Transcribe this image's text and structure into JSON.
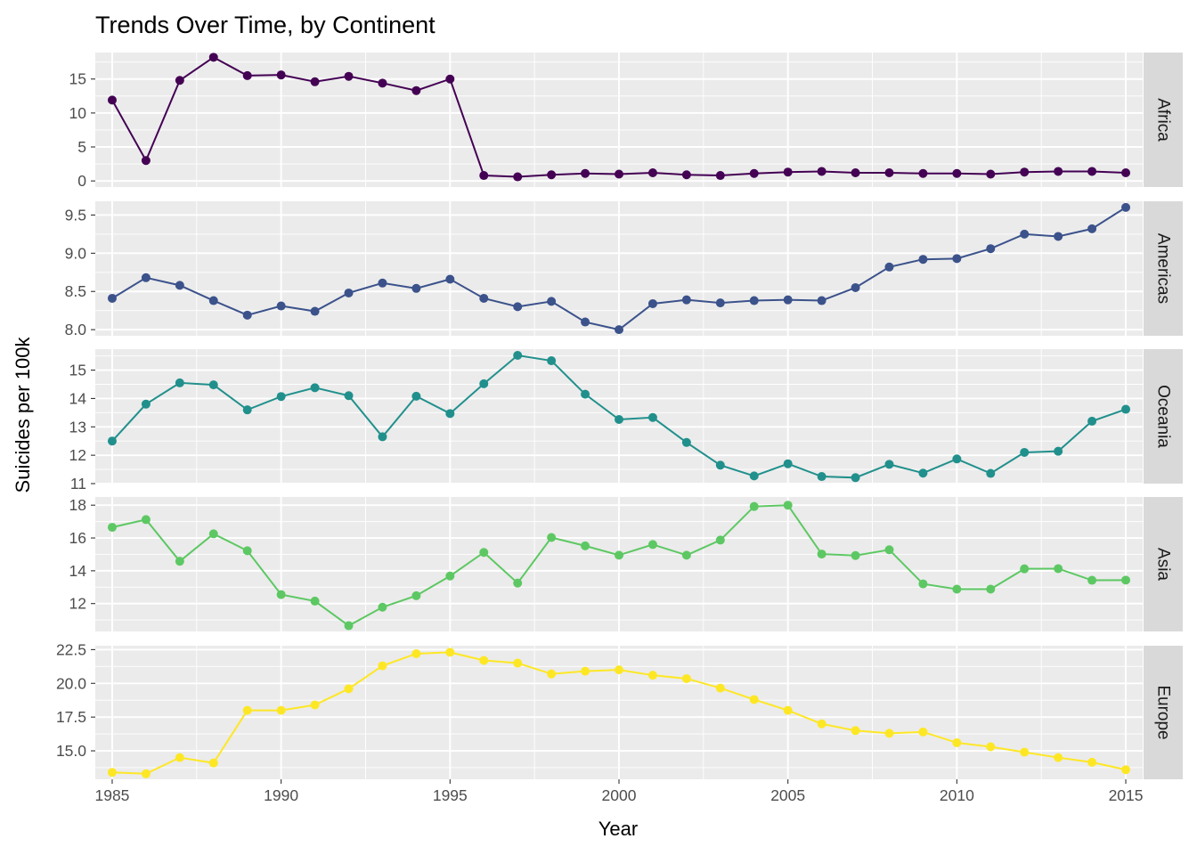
{
  "chart_data": {
    "type": "line",
    "title": "Trends Over Time, by Continent",
    "xlabel": "Year",
    "ylabel": "Suicides per 100k",
    "x": [
      1985,
      1986,
      1987,
      1988,
      1989,
      1990,
      1991,
      1992,
      1993,
      1994,
      1995,
      1996,
      1997,
      1998,
      1999,
      2000,
      2001,
      2002,
      2003,
      2004,
      2005,
      2006,
      2007,
      2008,
      2009,
      2010,
      2011,
      2012,
      2013,
      2014,
      2015
    ],
    "x_ticks": [
      1985,
      1990,
      1995,
      2000,
      2005,
      2010,
      2015
    ],
    "xlim": [
      1984.5,
      2015.5
    ],
    "grid": true,
    "legend": "none",
    "facets": [
      {
        "name": "Africa",
        "color": "#440154",
        "ylim": [
          -0.9,
          18.9
        ],
        "y_ticks": [
          0,
          5,
          10,
          15
        ],
        "y_tick_labels": [
          "0",
          "5",
          "10",
          "15"
        ],
        "values": [
          11.9,
          3.0,
          14.8,
          18.2,
          15.5,
          15.6,
          14.6,
          15.4,
          14.4,
          13.3,
          15.0,
          0.8,
          0.6,
          0.9,
          1.1,
          1.0,
          1.2,
          0.9,
          0.8,
          1.1,
          1.3,
          1.4,
          1.2,
          1.2,
          1.1,
          1.1,
          1.0,
          1.3,
          1.4,
          1.4,
          1.2
        ]
      },
      {
        "name": "Americas",
        "color": "#3B528B",
        "ylim": [
          7.92,
          9.68
        ],
        "y_ticks": [
          8.0,
          8.5,
          9.0,
          9.5
        ],
        "y_tick_labels": [
          "8.0",
          "8.5",
          "9.0",
          "9.5"
        ],
        "values": [
          8.41,
          8.68,
          8.58,
          8.38,
          8.19,
          8.31,
          8.24,
          8.48,
          8.61,
          8.54,
          8.66,
          8.41,
          8.3,
          8.37,
          8.1,
          8.0,
          8.34,
          8.39,
          8.35,
          8.38,
          8.39,
          8.38,
          8.55,
          8.82,
          8.92,
          8.93,
          9.06,
          9.25,
          9.22,
          9.32,
          9.6
        ]
      },
      {
        "name": "Oceania",
        "color": "#21908C",
        "ylim": [
          11.0,
          15.74
        ],
        "y_ticks": [
          11,
          12,
          13,
          14,
          15
        ],
        "y_tick_labels": [
          "11",
          "12",
          "13",
          "14",
          "15"
        ],
        "values": [
          12.5,
          13.8,
          14.55,
          14.48,
          13.6,
          14.07,
          14.38,
          14.1,
          12.65,
          14.08,
          13.47,
          14.52,
          15.52,
          15.33,
          14.15,
          13.26,
          13.33,
          12.45,
          11.65,
          11.27,
          11.7,
          11.25,
          11.21,
          11.68,
          11.37,
          11.87,
          11.36,
          12.1,
          12.14,
          13.2,
          13.62
        ]
      },
      {
        "name": "Asia",
        "color": "#5DC863",
        "ylim": [
          10.3,
          18.5
        ],
        "y_ticks": [
          12,
          14,
          16,
          18
        ],
        "y_tick_labels": [
          "12",
          "14",
          "16",
          "18"
        ],
        "values": [
          16.65,
          17.12,
          14.58,
          16.25,
          15.22,
          12.55,
          12.15,
          10.65,
          11.78,
          12.48,
          13.68,
          15.12,
          13.25,
          16.03,
          15.52,
          14.95,
          15.6,
          14.95,
          15.87,
          17.92,
          18.0,
          15.02,
          14.93,
          15.28,
          13.2,
          12.88,
          12.88,
          14.12,
          14.13,
          13.42,
          13.43
        ]
      },
      {
        "name": "Europe",
        "color": "#FDE725",
        "ylim": [
          12.89,
          22.79
        ],
        "y_ticks": [
          15.0,
          17.5,
          20.0,
          22.5
        ],
        "y_tick_labels": [
          "15.0",
          "17.5",
          "20.0",
          "22.5"
        ],
        "values": [
          13.4,
          13.3,
          14.5,
          14.1,
          18.0,
          18.0,
          18.4,
          19.6,
          21.3,
          22.2,
          22.3,
          21.7,
          21.5,
          20.7,
          20.9,
          21.0,
          20.6,
          20.35,
          19.65,
          18.8,
          18.0,
          17.0,
          16.5,
          16.3,
          16.4,
          15.6,
          15.3,
          14.9,
          14.5,
          14.15,
          13.6
        ]
      }
    ]
  }
}
